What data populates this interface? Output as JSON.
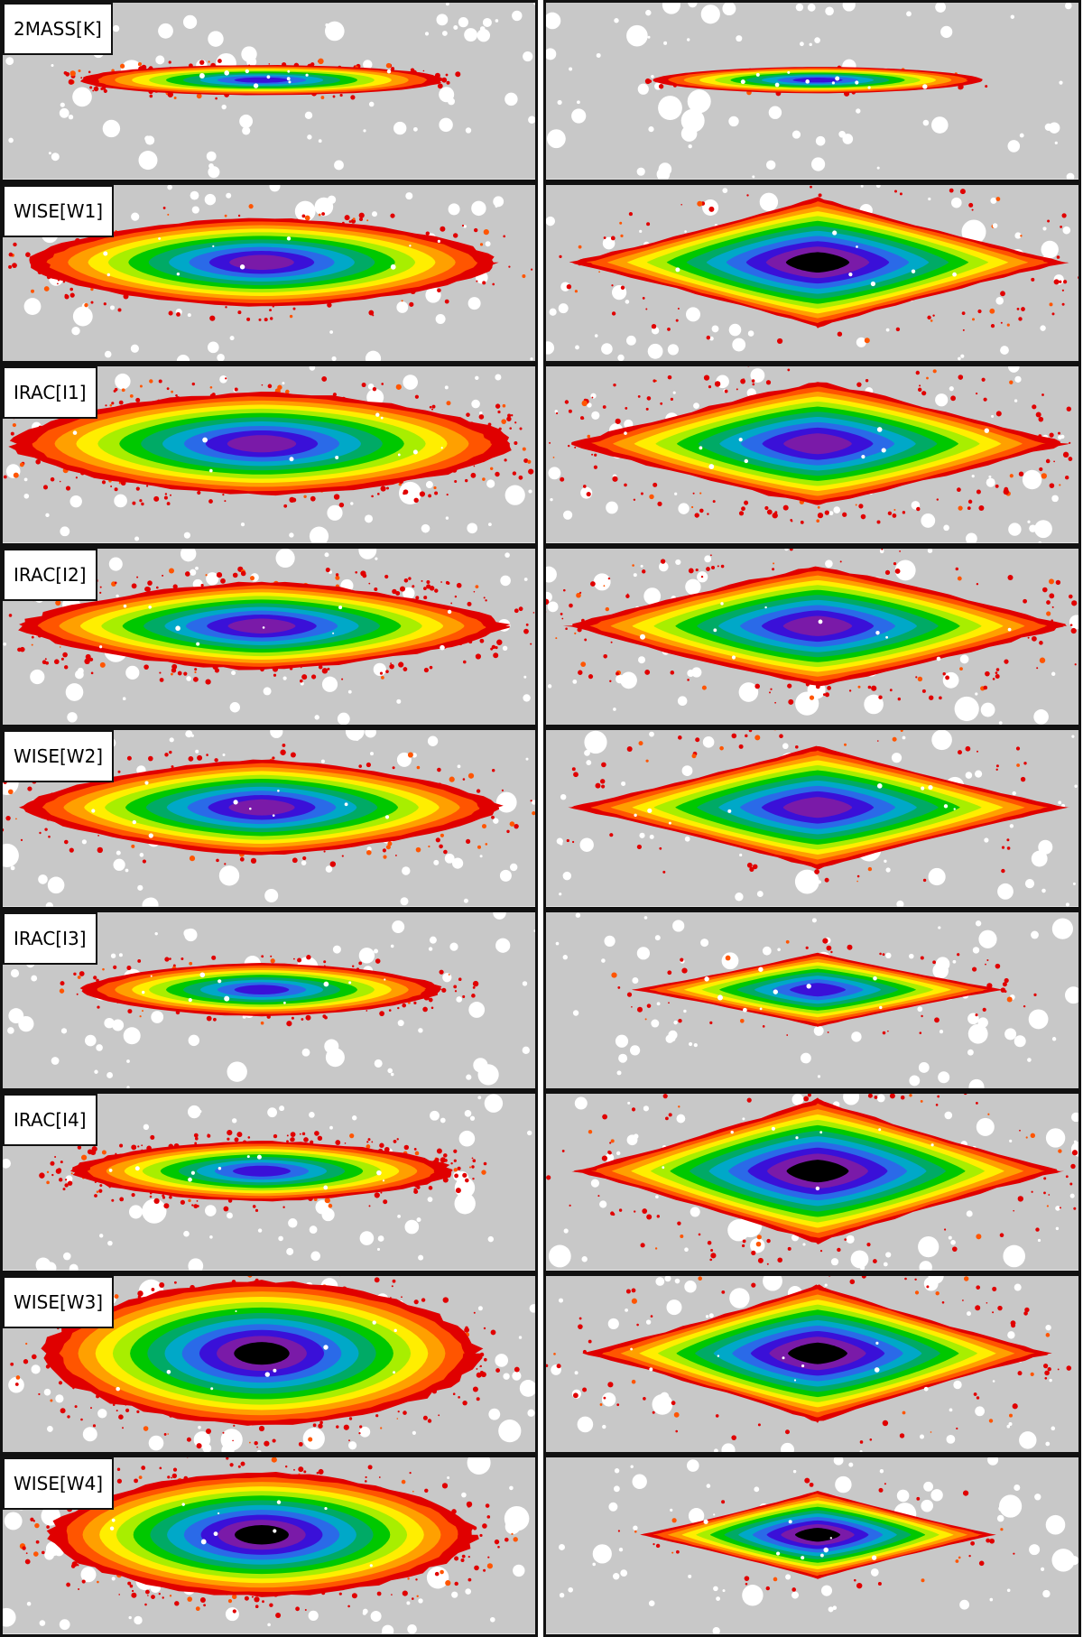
{
  "figure": {
    "columns": [
      "left",
      "right"
    ],
    "rows": [
      {
        "band": "2MASS[K]",
        "left": {
          "length": 0.68,
          "thickness": 0.17,
          "diamond": 0.0,
          "depth": 7,
          "halo": 0.5
        },
        "right": {
          "length": 0.62,
          "thickness": 0.15,
          "diamond": 0.2,
          "depth": 7,
          "halo": 0.1
        }
      },
      {
        "band": "WISE[W1]",
        "left": {
          "length": 0.88,
          "thickness": 0.5,
          "diamond": 0.3,
          "depth": 8,
          "halo": 0.6
        },
        "right": {
          "length": 0.94,
          "thickness": 0.74,
          "diamond": 1.0,
          "depth": 9,
          "halo": 0.5
        }
      },
      {
        "band": "IRAC[I1]",
        "left": {
          "length": 0.94,
          "thickness": 0.58,
          "diamond": 0.3,
          "depth": 8,
          "halo": 1.0
        },
        "right": {
          "length": 0.93,
          "thickness": 0.7,
          "diamond": 0.9,
          "depth": 8,
          "halo": 0.9
        }
      },
      {
        "band": "IRAC[I2]",
        "left": {
          "length": 0.92,
          "thickness": 0.5,
          "diamond": 0.5,
          "depth": 8,
          "halo": 1.0
        },
        "right": {
          "length": 0.94,
          "thickness": 0.68,
          "diamond": 0.9,
          "depth": 8,
          "halo": 0.8
        }
      },
      {
        "band": "WISE[W2]",
        "left": {
          "length": 0.9,
          "thickness": 0.54,
          "diamond": 0.5,
          "depth": 8,
          "halo": 0.6
        },
        "right": {
          "length": 0.94,
          "thickness": 0.7,
          "diamond": 1.0,
          "depth": 8,
          "halo": 0.4
        }
      },
      {
        "band": "IRAC[I3]",
        "left": {
          "length": 0.68,
          "thickness": 0.3,
          "diamond": 0.3,
          "depth": 7,
          "halo": 0.5
        },
        "right": {
          "length": 0.7,
          "thickness": 0.42,
          "diamond": 1.0,
          "depth": 7,
          "halo": 0.3
        }
      },
      {
        "band": "IRAC[I4]",
        "left": {
          "length": 0.72,
          "thickness": 0.34,
          "diamond": 0.3,
          "depth": 7,
          "halo": 1.0
        },
        "right": {
          "length": 0.92,
          "thickness": 0.82,
          "diamond": 1.0,
          "depth": 9,
          "halo": 0.6
        }
      },
      {
        "band": "WISE[W3]",
        "left": {
          "length": 0.82,
          "thickness": 0.82,
          "diamond": 0.2,
          "depth": 9,
          "halo": 1.0
        },
        "right": {
          "length": 0.88,
          "thickness": 0.78,
          "diamond": 1.0,
          "depth": 9,
          "halo": 0.5
        }
      },
      {
        "band": "WISE[W4]",
        "left": {
          "length": 0.8,
          "thickness": 0.7,
          "diamond": 0.2,
          "depth": 9,
          "halo": 1.0
        },
        "right": {
          "length": 0.67,
          "thickness": 0.5,
          "diamond": 1.0,
          "depth": 9,
          "halo": 0.2
        }
      }
    ]
  },
  "colors": {
    "background": "#ffffff",
    "masked_sky": "#c8c8c8",
    "frame": "#111111",
    "contour_levels": [
      "#e00000",
      "#ff5500",
      "#ffa000",
      "#ffee00",
      "#a8ee00",
      "#00c800",
      "#00aa66",
      "#00a8c8",
      "#2a6ae8",
      "#3a10d8",
      "#7a1aa8",
      "#000000"
    ]
  }
}
